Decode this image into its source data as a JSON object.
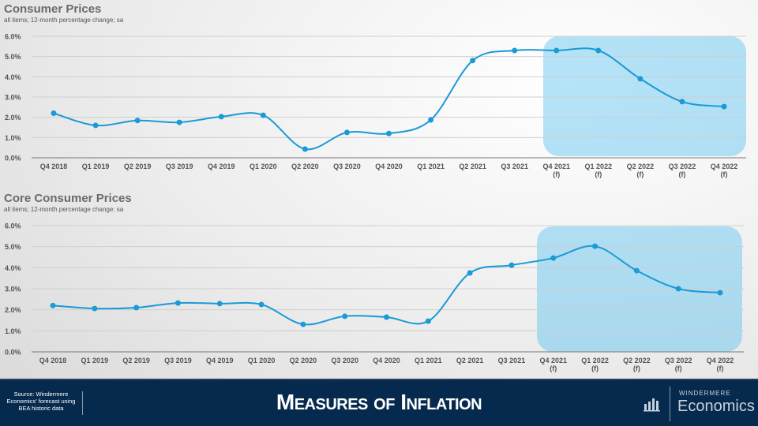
{
  "chart_data": [
    {
      "type": "line",
      "title": "Consumer Prices",
      "subtitle": "all items; 12-month percentage change; sa",
      "categories": [
        "Q4 2018",
        "Q1 2019",
        "Q2 2019",
        "Q3 2019",
        "Q4 2019",
        "Q1 2020",
        "Q2 2020",
        "Q3 2020",
        "Q4 2020",
        "Q1 2021",
        "Q2 2021",
        "Q3 2021",
        "Q4 2021|(f)",
        "Q1 2022|(f)",
        "Q2 2022|(f)",
        "Q3 2022|(f)",
        "Q4 2022|(f)"
      ],
      "values": [
        2.2,
        1.6,
        1.84,
        1.75,
        2.03,
        2.1,
        0.43,
        1.25,
        1.2,
        1.87,
        4.8,
        5.3,
        5.3,
        5.3,
        3.9,
        2.77,
        2.53
      ],
      "yticks": [
        "0.0%",
        "1.0%",
        "2.0%",
        "3.0%",
        "4.0%",
        "5.0%",
        "6.0%"
      ],
      "ylim": [
        0,
        6
      ],
      "highlight_from": "Q4 2021",
      "color": "#1a9ad6"
    },
    {
      "type": "line",
      "title": "Core Consumer Prices",
      "subtitle": "all items; 12-month percentage change; sa",
      "categories": [
        "Q4 2018",
        "Q1 2019",
        "Q2 2019",
        "Q3 2019",
        "Q4 2019",
        "Q1 2020",
        "Q2 2020",
        "Q3 2020",
        "Q4 2020",
        "Q1 2021",
        "Q2 2021",
        "Q3 2021",
        "Q4 2021|(f)",
        "Q1 2022|(f)",
        "Q2 2022|(f)",
        "Q3 2022|(f)",
        "Q4 2022|(f)"
      ],
      "values": [
        2.2,
        2.06,
        2.1,
        2.32,
        2.29,
        2.25,
        1.31,
        1.69,
        1.65,
        1.46,
        3.75,
        4.12,
        4.46,
        5.02,
        3.86,
        3.0,
        2.81
      ],
      "yticks": [
        "0.0%",
        "1.0%",
        "2.0%",
        "3.0%",
        "4.0%",
        "5.0%",
        "6.0%"
      ],
      "ylim": [
        0,
        6
      ],
      "highlight_from": "Q4 2021",
      "color": "#1a9ad6"
    }
  ],
  "footer": {
    "source": "Source: Windermere Economics' forecast using BEA historic data",
    "title": "Measures of Inflation",
    "brand_top": "WINDERMERE",
    "brand_bottom": "Economics"
  }
}
